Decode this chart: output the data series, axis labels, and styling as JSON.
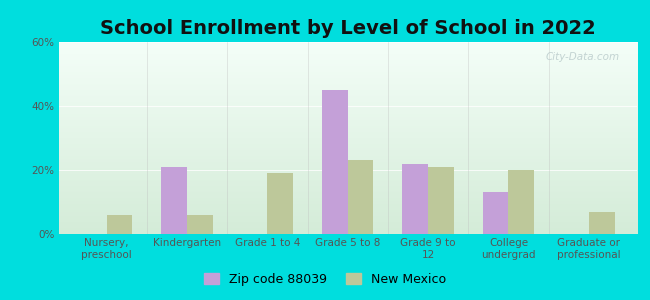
{
  "title": "School Enrollment by Level of School in 2022",
  "categories": [
    "Nursery,\npreschool",
    "Kindergarten",
    "Grade 1 to 4",
    "Grade 5 to 8",
    "Grade 9 to\n12",
    "College\nundergrad",
    "Graduate or\nprofessional"
  ],
  "zip_values": [
    0,
    21,
    0,
    45,
    22,
    13,
    0
  ],
  "nm_values": [
    6,
    6,
    19,
    23,
    21,
    20,
    7
  ],
  "zip_color": "#c4a0d8",
  "nm_color": "#bdc89a",
  "background_outer": "#00dede",
  "background_inner_top": "#f4fef8",
  "background_inner_bottom": "#d4ecd8",
  "ylim": [
    0,
    60
  ],
  "yticks": [
    0,
    20,
    40,
    60
  ],
  "ytick_labels": [
    "0%",
    "20%",
    "40%",
    "60%"
  ],
  "zip_label": "Zip code 88039",
  "nm_label": "New Mexico",
  "title_fontsize": 14,
  "tick_fontsize": 7.5,
  "legend_fontsize": 9,
  "bar_width": 0.32,
  "watermark": "City-Data.com"
}
